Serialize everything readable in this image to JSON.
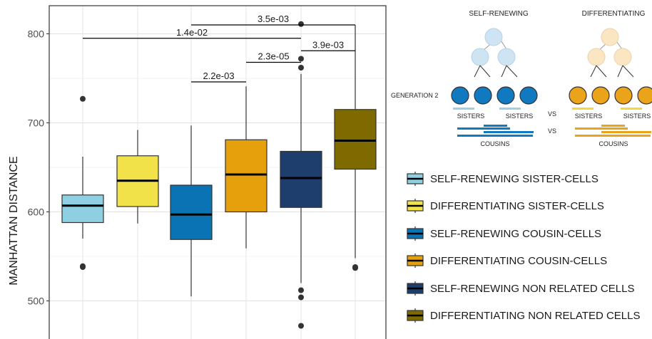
{
  "chart_data": {
    "type": "box",
    "ylabel": "MANHATTAN DISTANCE",
    "ylim": [
      455,
      830
    ],
    "yticks": [
      500,
      600,
      700,
      800
    ],
    "grid": true,
    "legend_position": "right",
    "series": [
      {
        "name": "SELF-RENEWING SISTER-CELLS",
        "color": "#8ECFE2",
        "whisker_low": 570,
        "q1": 588,
        "median": 607,
        "q3": 619,
        "whisker_high": 662,
        "outliers": [
          727,
          539,
          538
        ]
      },
      {
        "name": "DIFFERENTIATING SISTER-CELLS",
        "color": "#F2E24A",
        "whisker_low": 587,
        "q1": 606,
        "median": 635,
        "q3": 663,
        "whisker_high": 692,
        "outliers": []
      },
      {
        "name": "SELF-RENEWING COUSIN-CELLS",
        "color": "#0A73B4",
        "whisker_low": 505,
        "q1": 569,
        "median": 597,
        "q3": 630,
        "whisker_high": 697,
        "outliers": []
      },
      {
        "name": "DIFFERENTIATING COUSIN-CELLS",
        "color": "#E5A00C",
        "whisker_low": 559,
        "q1": 600,
        "median": 642,
        "q3": 681,
        "whisker_high": 741,
        "outliers": []
      },
      {
        "name": "SELF-RENEWING NON RELATED CELLS",
        "color": "#1E3E6E",
        "whisker_low": 520,
        "q1": 605,
        "median": 638,
        "q3": 668,
        "whisker_high": 755,
        "outliers": [
          811,
          772,
          762,
          512,
          504,
          472
        ]
      },
      {
        "name": "DIFFERENTIATING NON RELATED CELLS",
        "color": "#7F6A00",
        "whisker_low": 548,
        "q1": 648,
        "median": 680,
        "q3": 715,
        "whisker_high": 810,
        "outliers": [
          538,
          537
        ]
      }
    ],
    "annotations": [
      {
        "label": "3.5e-03",
        "from": 3,
        "to": 6,
        "y": 810
      },
      {
        "label": "1.4e-02",
        "from": 1,
        "to": 5,
        "y": 795
      },
      {
        "label": "3.9e-03",
        "from": 5,
        "to": 6,
        "y": 781
      },
      {
        "label": "2.3e-05",
        "from": 4,
        "to": 5,
        "y": 768
      },
      {
        "label": "2.2e-03",
        "from": 3,
        "to": 4,
        "y": 746
      }
    ]
  },
  "diagram": {
    "self_renewing_title": "SELF-RENEWING",
    "differentiating_title": "DIFFERENTIATING",
    "generation_label": "GENERATION 2",
    "sisters_label": "SISTERS",
    "vs_label": "VS",
    "cousins_label": "COUSINS",
    "colors": {
      "sr_light": "#CFE4F2",
      "diff_light": "#FBE6C4",
      "sr_dark": "#1179BF",
      "diff_dark": "#EBA31A",
      "sr_sister_bar": "#9ED0E5",
      "diff_sister_bar": "#EFD840"
    }
  }
}
